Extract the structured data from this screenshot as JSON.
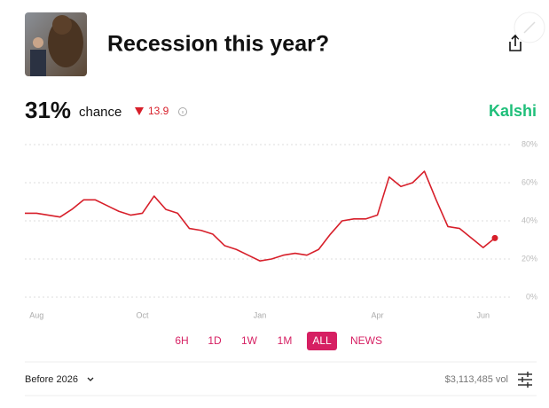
{
  "header": {
    "title": "Recession this year?"
  },
  "stats": {
    "percent": "31%",
    "label": "chance",
    "change": 13.9,
    "brand": "Kalshi"
  },
  "chart_data": {
    "type": "line",
    "color": "#d71f2a",
    "categories": [
      null,
      "Aug",
      null,
      null,
      null,
      null,
      null,
      null,
      null,
      null,
      "Oct",
      null,
      null,
      null,
      null,
      null,
      null,
      null,
      null,
      null,
      "Jan",
      null,
      null,
      null,
      null,
      null,
      null,
      null,
      null,
      null,
      "Apr",
      null,
      null,
      null,
      null,
      null,
      null,
      null,
      null,
      "Jun",
      null
    ],
    "values": [
      44,
      44,
      43,
      42,
      46,
      51,
      51,
      48,
      45,
      43,
      44,
      53,
      46,
      44,
      36,
      35,
      33,
      27,
      25,
      22,
      19,
      20,
      22,
      23,
      22,
      25,
      33,
      40,
      41,
      41,
      43,
      63,
      58,
      60,
      66,
      51,
      37,
      36,
      31,
      26,
      31
    ],
    "ylim": [
      0,
      80
    ],
    "yticks": [
      {
        "value": 0,
        "label": "0%"
      },
      {
        "value": 20,
        "label": "20%"
      },
      {
        "value": 40,
        "label": "40%"
      },
      {
        "value": 60,
        "label": "60%"
      },
      {
        "value": 80,
        "label": "80%"
      }
    ],
    "grid": true
  },
  "range_buttons": [
    "6H",
    "1D",
    "1W",
    "1M",
    "ALL",
    "NEWS"
  ],
  "active_range": "ALL",
  "footer": {
    "market": "Before 2026",
    "volume": "$3,113,485 vol"
  }
}
